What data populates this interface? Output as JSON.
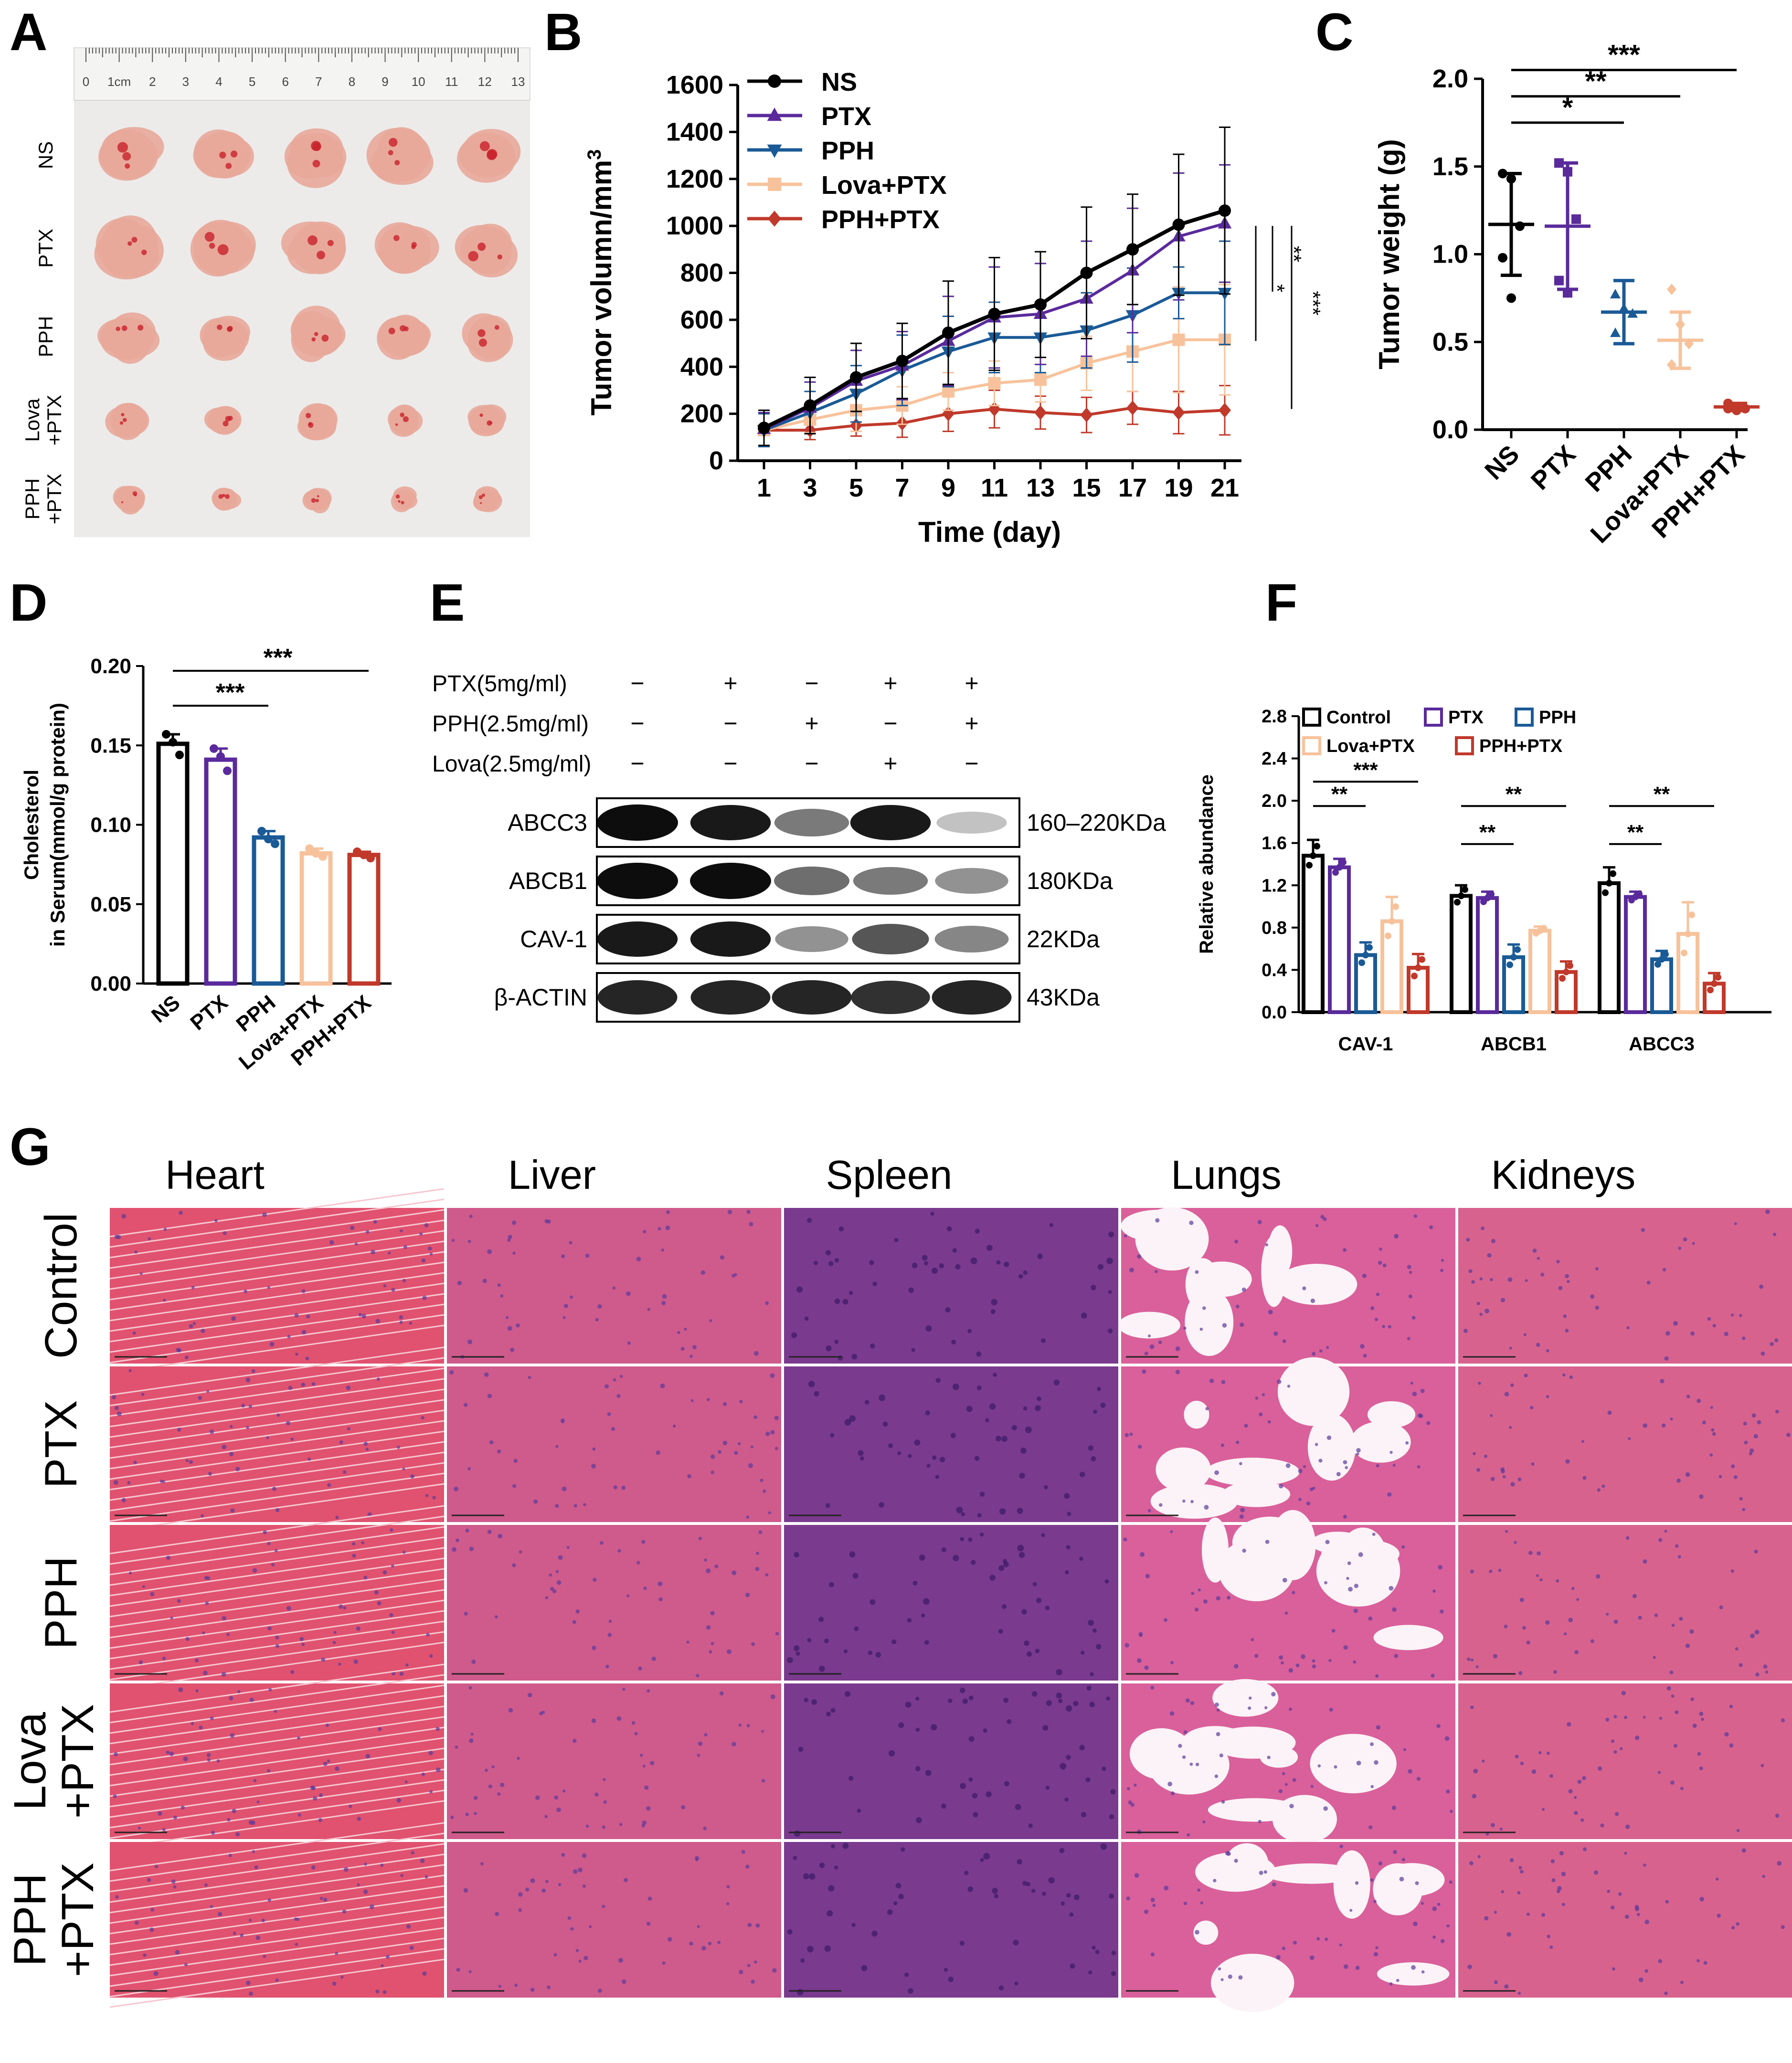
{
  "colors": {
    "NS": "#000000",
    "PTX": "#5a2a9c",
    "PPH": "#1a5a96",
    "LovaPTX": "#f7c29b",
    "PPHPTX": "#c0392b",
    "tumor": "#e8a89a",
    "tumor_blood": "#c8202a",
    "ruler_bg": "#e6e6e6",
    "heart": "#e0526f",
    "liver": "#cf5a8c",
    "spleen": "#7a3a8e",
    "lung_tissue": "#d9609a",
    "kidney": "#d8628e"
  },
  "panel_letters": [
    "A",
    "B",
    "C",
    "D",
    "E",
    "F",
    "G"
  ],
  "panelA": {
    "ruler_ticks": [
      "0",
      "1cm",
      "2",
      "3",
      "4",
      "5",
      "6",
      "7",
      "8",
      "9",
      "10",
      "11",
      "12",
      "13"
    ],
    "row_labels": [
      "NS",
      "PTX",
      "PPH",
      "Lova\n+PTX",
      "PPH\n+PTX"
    ],
    "row_label_lines": [
      [
        "NS"
      ],
      [
        "PTX"
      ],
      [
        "PPH"
      ],
      [
        "Lova",
        "+PTX"
      ],
      [
        "PPH",
        "+PTX"
      ]
    ]
  },
  "chart_data": [
    {
      "id": "B",
      "type": "line",
      "title": "",
      "xlabel": "Time (day)",
      "ylabel": "Tumor volumn/mm3",
      "ylabel_main": "Tumor volumn/mm",
      "ylabel_sup": "3",
      "x": [
        1,
        3,
        5,
        7,
        9,
        11,
        13,
        15,
        17,
        19,
        21
      ],
      "ylim": [
        0,
        1600
      ],
      "yticks": [
        "0",
        "200",
        "400",
        "600",
        "800",
        "1000",
        "1200",
        "1400",
        "1600"
      ],
      "xticks": [
        "1",
        "3",
        "5",
        "7",
        "9",
        "11",
        "13",
        "15",
        "17",
        "19",
        "21"
      ],
      "legend_position": "top-left",
      "series": [
        {
          "name": "NS",
          "color_key": "NS",
          "marker": "circle",
          "values": [
            140,
            235,
            355,
            425,
            545,
            625,
            665,
            800,
            900,
            1005,
            1065
          ],
          "errors": [
            75,
            120,
            145,
            160,
            220,
            240,
            225,
            280,
            235,
            300,
            355
          ]
        },
        {
          "name": "PTX",
          "color_key": "PTX",
          "marker": "triangle-up",
          "values": [
            135,
            225,
            340,
            405,
            510,
            610,
            625,
            690,
            810,
            955,
            1010
          ],
          "errors": [
            70,
            110,
            130,
            145,
            190,
            215,
            215,
            245,
            265,
            270,
            250
          ]
        },
        {
          "name": "PPH",
          "color_key": "PPH",
          "marker": "triangle-down",
          "values": [
            130,
            205,
            285,
            385,
            465,
            525,
            525,
            555,
            620,
            715,
            715
          ],
          "errors": [
            70,
            90,
            120,
            150,
            150,
            150,
            150,
            160,
            200,
            110,
            220
          ]
        },
        {
          "name": "Lova+PTX",
          "color_key": "LovaPTX",
          "marker": "square",
          "values": [
            130,
            175,
            215,
            235,
            295,
            330,
            345,
            415,
            465,
            515,
            515
          ],
          "errors": [
            70,
            55,
            90,
            80,
            80,
            95,
            95,
            115,
            170,
            225,
            235
          ]
        },
        {
          "name": "PPH+PTX",
          "color_key": "PPHPTX",
          "marker": "diamond",
          "values": [
            130,
            130,
            150,
            160,
            200,
            220,
            205,
            195,
            225,
            205,
            215
          ],
          "errors": [
            70,
            40,
            45,
            60,
            75,
            80,
            70,
            75,
            70,
            90,
            105
          ]
        }
      ],
      "significance": [
        "*",
        "**",
        "***"
      ]
    },
    {
      "id": "C",
      "type": "scatter",
      "ylabel": "Tumor weight (g)",
      "categories": [
        "NS",
        "PTX",
        "PPH",
        "Lova+PTX",
        "PPH+PTX"
      ],
      "color_keys": [
        "NS",
        "PTX",
        "PPH",
        "LovaPTX",
        "PPHPTX"
      ],
      "ylim": [
        0,
        2.0
      ],
      "yticks": [
        "0.0",
        "0.5",
        "1.0",
        "1.5",
        "2.0"
      ],
      "means": [
        1.17,
        1.16,
        0.67,
        0.51,
        0.13
      ],
      "sd": [
        0.29,
        0.36,
        0.18,
        0.16,
        0.02
      ],
      "points": [
        [
          1.46,
          1.43,
          1.16,
          0.98,
          0.75
        ],
        [
          1.52,
          1.47,
          1.2,
          0.85,
          0.78
        ],
        [
          0.77,
          0.69,
          0.66,
          0.55
        ],
        [
          0.8,
          0.6,
          0.49,
          0.37
        ],
        [
          0.15,
          0.13,
          0.12,
          0.12,
          0.11
        ]
      ],
      "significance": [
        {
          "from": 0,
          "to": 2,
          "label": "*"
        },
        {
          "from": 0,
          "to": 3,
          "label": "**"
        },
        {
          "from": 0,
          "to": 4,
          "label": "***"
        }
      ]
    },
    {
      "id": "D",
      "type": "bar",
      "ylabel_lines": [
        "Cholesterol",
        "in Serum(mmol/g protein)"
      ],
      "ylabel": "Cholesterol in Serum(mmol/g protein)",
      "categories": [
        "NS",
        "PTX",
        "PPH",
        "Lova+PTX",
        "PPH+PTX"
      ],
      "color_keys": [
        "NS",
        "PTX",
        "PPH",
        "LovaPTX",
        "PPHPTX"
      ],
      "values": [
        0.151,
        0.141,
        0.092,
        0.082,
        0.081
      ],
      "errors": [
        0.006,
        0.007,
        0.004,
        0.003,
        0.002
      ],
      "points": [
        [
          0.157,
          0.152,
          0.144
        ],
        [
          0.148,
          0.143,
          0.134
        ],
        [
          0.096,
          0.091,
          0.088
        ],
        [
          0.085,
          0.082,
          0.08
        ],
        [
          0.083,
          0.081,
          0.079
        ]
      ],
      "ylim": [
        0,
        0.2
      ],
      "yticks": [
        "0.00",
        "0.05",
        "0.10",
        "0.15",
        "0.20"
      ],
      "significance": [
        {
          "from": 0,
          "to": 2,
          "label": "***"
        },
        {
          "from": 0,
          "to": 4,
          "label": "***"
        }
      ]
    },
    {
      "id": "F",
      "type": "bar",
      "ylabel": "Relative abundance",
      "categories": [
        "CAV-1",
        "ABCB1",
        "ABCC3"
      ],
      "ylim": [
        0,
        2.8
      ],
      "yticks": [
        "0.0",
        "0.4",
        "0.8",
        "1.2",
        "1.6",
        "2.0",
        "2.4",
        "2.8"
      ],
      "series": [
        {
          "name": "Control",
          "color_key": "NS",
          "values": [
            1.48,
            1.1,
            1.22
          ],
          "errors": [
            0.15,
            0.1,
            0.15
          ]
        },
        {
          "name": "PTX",
          "color_key": "PTX",
          "values": [
            1.37,
            1.08,
            1.09
          ],
          "errors": [
            0.08,
            0.06,
            0.05
          ]
        },
        {
          "name": "PPH",
          "color_key": "PPH",
          "values": [
            0.54,
            0.52,
            0.5
          ],
          "errors": [
            0.12,
            0.12,
            0.08
          ]
        },
        {
          "name": "Lova+PTX",
          "color_key": "LovaPTX",
          "values": [
            0.86,
            0.77,
            0.74
          ],
          "errors": [
            0.23,
            0.04,
            0.3
          ]
        },
        {
          "name": "PPH+PTX",
          "color_key": "PPHPTX",
          "values": [
            0.42,
            0.38,
            0.27
          ],
          "errors": [
            0.13,
            0.1,
            0.1
          ]
        }
      ],
      "significance": [
        {
          "group": 0,
          "from": 0,
          "to": 2,
          "label": "**"
        },
        {
          "group": 0,
          "from": 0,
          "to": 4,
          "label": "***"
        },
        {
          "group": 1,
          "from": 0,
          "to": 2,
          "label": "**"
        },
        {
          "group": 1,
          "from": 0,
          "to": 4,
          "label": "**"
        },
        {
          "group": 2,
          "from": 0,
          "to": 2,
          "label": "**"
        },
        {
          "group": 2,
          "from": 0,
          "to": 4,
          "label": "**"
        }
      ]
    }
  ],
  "panelE": {
    "conditions": [
      {
        "label": "PTX(5mg/ml)",
        "signs": [
          "−",
          "+",
          "−",
          "+",
          "+"
        ]
      },
      {
        "label": "PPH(2.5mg/ml)",
        "signs": [
          "−",
          "−",
          "+",
          "−",
          "+"
        ]
      },
      {
        "label": "Lova(2.5mg/ml)",
        "signs": [
          "−",
          "−",
          "−",
          "+",
          "−"
        ]
      }
    ],
    "blots": [
      {
        "protein": "ABCC3",
        "size": "160–220KDa",
        "intensity": [
          1.0,
          0.95,
          0.55,
          0.95,
          0.25
        ]
      },
      {
        "protein": "ABCB1",
        "size": "180KDa",
        "intensity": [
          1.0,
          1.0,
          0.6,
          0.55,
          0.45
        ]
      },
      {
        "protein": "CAV-1",
        "size": "22KDa",
        "intensity": [
          0.95,
          0.95,
          0.45,
          0.7,
          0.5
        ]
      },
      {
        "protein": "β-ACTIN",
        "size": "43KDa",
        "intensity": [
          0.9,
          0.9,
          0.9,
          0.85,
          0.9
        ]
      }
    ]
  },
  "panelG": {
    "columns": [
      "Heart",
      "Liver",
      "Spleen",
      "Lungs",
      "Kidneys"
    ],
    "rows": [
      "Control",
      "PTX",
      "PPH",
      "Lova +PTX",
      "PPH +PTX"
    ],
    "row_label_lines": [
      [
        "Control"
      ],
      [
        "PTX"
      ],
      [
        "PPH"
      ],
      [
        "Lova",
        "+PTX"
      ],
      [
        "PPH",
        "+PTX"
      ]
    ]
  }
}
